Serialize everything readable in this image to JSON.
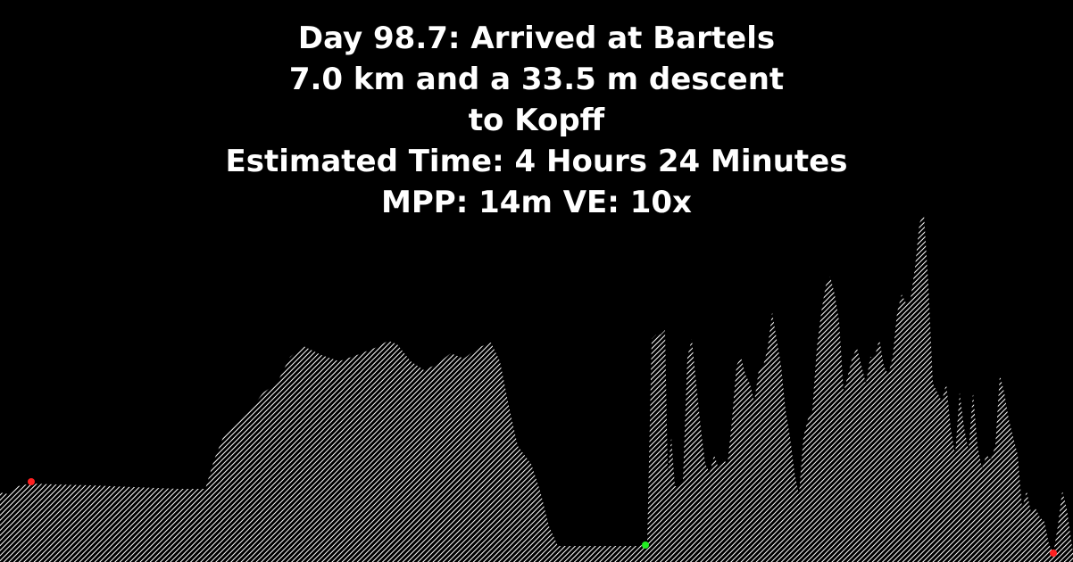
{
  "header": {
    "line1": "Day 98.7: Arrived at Bartels",
    "line2": "7.0 km and a 33.5 m descent",
    "line3": "to Kopff",
    "line4": "Estimated Time: 4 Hours 24 Minutes",
    "line5": "MPP: 14m VE: 10x"
  },
  "colors": {
    "background": "#000000",
    "text": "#ffffff",
    "terrain_hatch": "#ffffff",
    "marker_start": "#ff2020",
    "marker_mid": "#22ee22",
    "marker_end": "#ff2020"
  },
  "chart_data": {
    "type": "area",
    "title": "Day 98.7: Arrived at Bartels",
    "xlabel": "",
    "ylabel": "",
    "grid": false,
    "legend": "none",
    "fill_style": "diagonal-hatch",
    "xlim": [
      0,
      1202
    ],
    "ylim": [
      0,
      400
    ],
    "x": [
      0,
      10,
      20,
      35,
      60,
      100,
      150,
      200,
      230,
      240,
      250,
      265,
      280,
      295,
      310,
      325,
      340,
      360,
      380,
      400,
      420,
      435,
      445,
      460,
      475,
      490,
      505,
      520,
      535,
      550,
      560,
      570,
      580,
      595,
      605,
      615,
      625,
      640,
      660,
      690,
      715,
      725,
      730,
      735,
      740,
      745,
      748,
      752,
      756,
      760,
      765,
      770,
      775,
      780,
      785,
      790,
      795,
      800,
      805,
      810,
      815,
      820,
      825,
      830,
      835,
      840,
      845,
      850,
      855,
      860,
      865,
      870,
      875,
      880,
      885,
      890,
      895,
      900,
      905,
      910,
      915,
      920,
      925,
      930,
      935,
      940,
      945,
      950,
      955,
      960,
      965,
      970,
      975,
      980,
      985,
      990,
      995,
      1000,
      1005,
      1010,
      1015,
      1020,
      1025,
      1030,
      1035,
      1040,
      1045,
      1050,
      1055,
      1060,
      1065,
      1070,
      1075,
      1080,
      1085,
      1090,
      1095,
      1100,
      1105,
      1110,
      1115,
      1120,
      1125,
      1130,
      1135,
      1140,
      1145,
      1150,
      1155,
      1160,
      1165,
      1170,
      1175,
      1180,
      1185,
      1190,
      1195,
      1202
    ],
    "y": [
      78,
      76,
      85,
      88,
      87,
      86,
      84,
      82,
      82,
      115,
      140,
      155,
      170,
      190,
      200,
      230,
      242,
      232,
      225,
      232,
      240,
      248,
      244,
      225,
      215,
      222,
      234,
      228,
      240,
      246,
      225,
      175,
      130,
      110,
      80,
      40,
      18,
      18,
      18,
      18,
      18,
      20,
      250,
      255,
      255,
      260,
      100,
      140,
      85,
      85,
      90,
      230,
      250,
      200,
      150,
      110,
      100,
      120,
      105,
      115,
      110,
      160,
      220,
      230,
      210,
      200,
      180,
      215,
      220,
      240,
      280,
      250,
      220,
      170,
      140,
      100,
      75,
      140,
      160,
      170,
      240,
      280,
      310,
      320,
      300,
      270,
      190,
      210,
      230,
      240,
      220,
      200,
      230,
      230,
      250,
      220,
      210,
      230,
      280,
      300,
      290,
      295,
      330,
      380,
      390,
      310,
      200,
      190,
      180,
      200,
      150,
      120,
      190,
      150,
      125,
      190,
      130,
      105,
      120,
      115,
      130,
      210,
      190,
      160,
      140,
      120,
      60,
      80,
      55,
      60,
      50,
      45,
      20,
      10,
      40,
      80,
      60,
      10
    ],
    "markers": [
      {
        "label": "start",
        "x": 35,
        "y": 90,
        "color": "#ff2020"
      },
      {
        "label": "arrival",
        "x": 723,
        "y": 19,
        "color": "#22ee22"
      },
      {
        "label": "end",
        "x": 1180,
        "y": 10,
        "color": "#ff2020"
      }
    ]
  }
}
